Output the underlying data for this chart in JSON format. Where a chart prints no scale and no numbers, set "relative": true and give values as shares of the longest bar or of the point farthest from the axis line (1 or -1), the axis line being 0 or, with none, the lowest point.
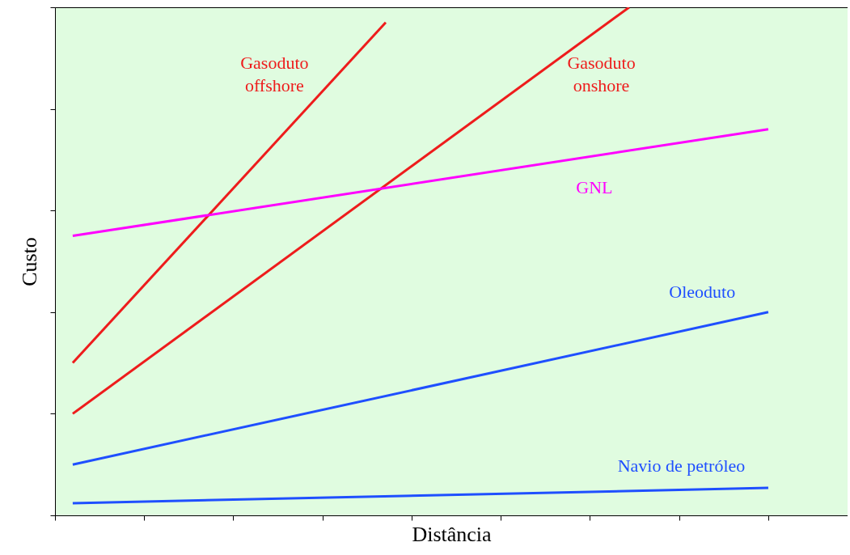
{
  "chart_data": {
    "type": "line",
    "relative": true,
    "xlabel": "Distância",
    "ylabel": "Custo",
    "categories": [
      null,
      null,
      null,
      null,
      null,
      null,
      null,
      null,
      null,
      null,
      null,
      null,
      null,
      null,
      null,
      null,
      null,
      null,
      null,
      null,
      null
    ],
    "series": [
      {
        "name": "Gasoduto offshore",
        "color": "#ee1c1c",
        "values": [
          0.3,
          null,
          null,
          null,
          null,
          null,
          null,
          null,
          null,
          0.97,
          null,
          null,
          null,
          null,
          null,
          null,
          null,
          null,
          null,
          null,
          null
        ]
      },
      {
        "name": "Gasoduto onshore",
        "color": "#ee1c1c",
        "values": [
          0.2,
          null,
          null,
          null,
          null,
          null,
          null,
          null,
          null,
          null,
          null,
          null,
          null,
          null,
          null,
          null,
          1.0,
          null,
          null,
          null,
          null
        ]
      },
      {
        "name": "GNL",
        "color": "#ff00ff",
        "values": [
          0.55,
          null,
          null,
          null,
          null,
          null,
          null,
          null,
          null,
          null,
          null,
          null,
          null,
          null,
          null,
          null,
          null,
          null,
          null,
          null,
          0.76
        ]
      },
      {
        "name": "Oleoduto",
        "color": "#1f4fff",
        "values": [
          0.1,
          null,
          null,
          null,
          null,
          null,
          null,
          null,
          null,
          null,
          null,
          null,
          null,
          null,
          null,
          null,
          null,
          null,
          null,
          null,
          0.4
        ]
      },
      {
        "name": "Navio de petróleo",
        "color": "#1f4fff",
        "values": [
          0.024,
          null,
          null,
          null,
          null,
          null,
          null,
          null,
          null,
          null,
          null,
          null,
          null,
          null,
          null,
          null,
          null,
          null,
          null,
          null,
          0.054
        ]
      }
    ],
    "grid": false,
    "legend": false,
    "marker": "none",
    "line_style": "solid"
  }
}
